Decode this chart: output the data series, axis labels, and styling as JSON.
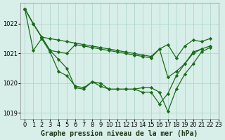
{
  "title": "Graphe pression niveau de la mer (hPa)",
  "bg_color": "#d8eee8",
  "grid_color": "#aad4c8",
  "line_color": "#1a6b1a",
  "xlim": [
    -0.5,
    23
  ],
  "ylim": [
    1018.8,
    1022.7
  ],
  "yticks": [
    1019,
    1020,
    1021,
    1022
  ],
  "xticks": [
    0,
    1,
    2,
    3,
    4,
    5,
    6,
    7,
    8,
    9,
    10,
    11,
    12,
    13,
    14,
    15,
    16,
    17,
    18,
    19,
    20,
    21,
    22,
    23
  ],
  "series": [
    {
      "x": [
        0,
        1,
        2,
        3,
        4,
        5,
        6,
        7,
        8,
        9,
        10,
        11,
        12,
        13,
        14,
        15,
        16,
        17,
        18,
        19,
        20,
        21,
        22
      ],
      "y": [
        1022.5,
        1022.0,
        1021.55,
        1021.5,
        1021.45,
        1021.4,
        1021.35,
        1021.3,
        1021.25,
        1021.2,
        1021.15,
        1021.1,
        1021.05,
        1021.0,
        1020.95,
        1020.9,
        1021.15,
        1021.3,
        1020.85,
        1021.25,
        1021.45,
        1021.4,
        1021.5
      ]
    },
    {
      "x": [
        0,
        1,
        2,
        3,
        4,
        5,
        6,
        7,
        8,
        9,
        10,
        11,
        12,
        13,
        14,
        15,
        16,
        17,
        18,
        19,
        20,
        21,
        22
      ],
      "y": [
        1022.5,
        1022.0,
        1021.55,
        1021.1,
        1020.8,
        1020.5,
        1019.85,
        1019.8,
        1020.05,
        1020.0,
        1019.8,
        1019.8,
        1019.8,
        1019.8,
        1019.85,
        1019.85,
        1019.7,
        1019.05,
        1019.8,
        1020.3,
        1020.65,
        1021.05,
        1021.2
      ]
    },
    {
      "x": [
        0,
        1,
        2,
        3,
        4,
        5,
        6,
        7,
        8,
        9,
        10,
        11,
        12,
        13,
        14,
        15,
        16,
        17,
        18,
        19,
        20,
        21
      ],
      "y": [
        1022.5,
        1021.1,
        1021.5,
        1021.05,
        1020.4,
        1020.25,
        1019.9,
        1019.85,
        1020.05,
        1019.9,
        1019.8,
        1019.8,
        1019.8,
        1019.8,
        1019.7,
        1019.7,
        1019.3,
        1019.65,
        1020.25,
        1020.65,
        1021.0,
        1021.15
      ]
    },
    {
      "x": [
        0,
        1,
        2,
        3,
        4,
        5,
        6,
        7,
        8,
        9,
        10,
        11,
        12,
        13,
        14,
        15,
        16,
        17,
        18,
        19,
        20,
        21,
        22
      ],
      "y": [
        1022.5,
        1022.0,
        1021.55,
        1021.1,
        1021.05,
        1021.0,
        1021.3,
        1021.25,
        1021.2,
        1021.15,
        1021.1,
        1021.05,
        1021.0,
        1020.95,
        1020.9,
        1020.85,
        1021.15,
        1020.2,
        1020.4,
        1020.65,
        1021.05,
        1021.15,
        1021.25
      ]
    }
  ],
  "marker": "D",
  "markersize": 2.2,
  "linewidth": 0.9,
  "title_fontsize": 7,
  "tick_fontsize": 6
}
